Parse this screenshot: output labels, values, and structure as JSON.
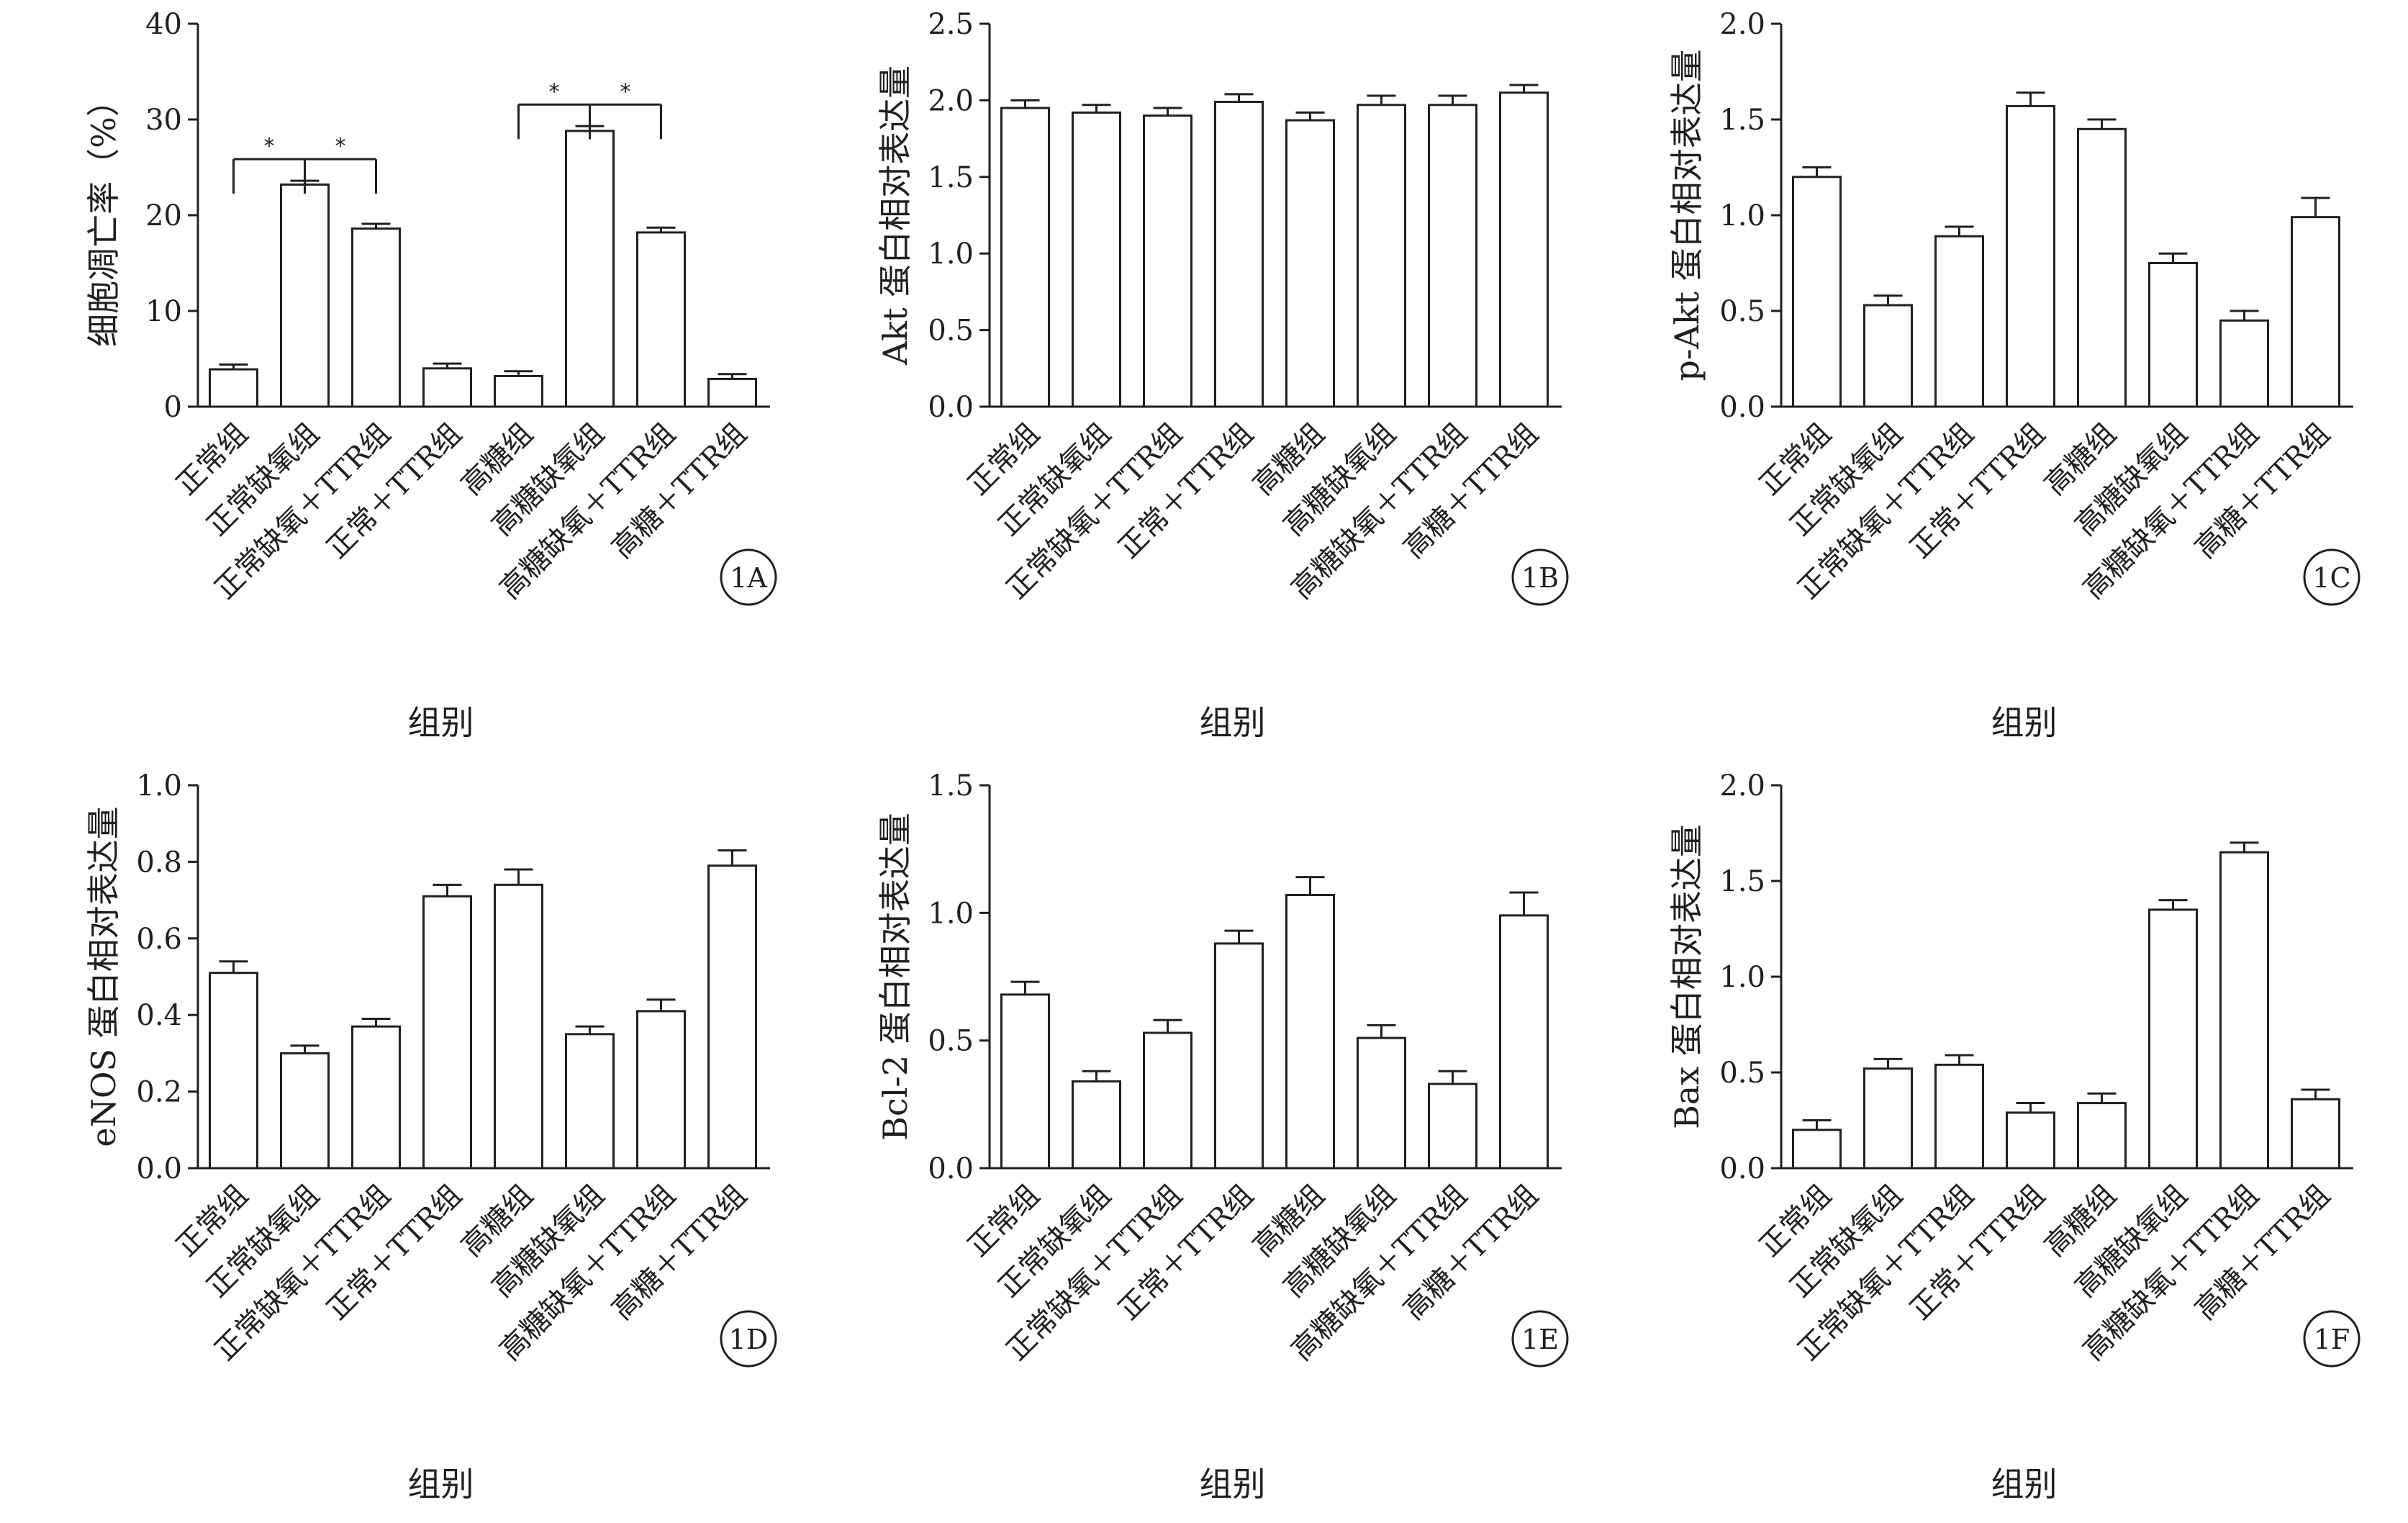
{
  "chart_data": [
    {
      "type": "bar",
      "panel_label": "1A",
      "ylabel": "细胞凋亡率（%）",
      "xlabel": "组别",
      "ylim": [
        0,
        40
      ],
      "yticks": [
        "0",
        "10",
        "20",
        "30",
        "40"
      ],
      "categories": [
        "正常组",
        "正常缺氧组",
        "正常缺氧＋TTR组",
        "正常＋TTR组",
        "高糖组",
        "高糖缺氧组",
        "高糖缺氧＋TTR组",
        "高糖＋TTR组"
      ],
      "values": [
        3.9,
        23.2,
        18.6,
        4.0,
        3.2,
        28.8,
        18.2,
        2.9
      ],
      "errors": [
        0.5,
        0.4,
        0.5,
        0.5,
        0.5,
        0.5,
        0.5,
        0.5
      ],
      "significance": [
        {
          "from": 0,
          "to": 1,
          "label": "*"
        },
        {
          "from": 1,
          "to": 2,
          "label": "*"
        },
        {
          "from": 4,
          "to": 5,
          "label": "*"
        },
        {
          "from": 5,
          "to": 6,
          "label": "*"
        }
      ]
    },
    {
      "type": "bar",
      "panel_label": "1B",
      "ylabel": "Akt 蛋白相对表达量",
      "xlabel": "组别",
      "ylim": [
        0,
        2.5
      ],
      "yticks": [
        "0.0",
        "0.5",
        "1.0",
        "1.5",
        "2.0",
        "2.5"
      ],
      "categories": [
        "正常组",
        "正常缺氧组",
        "正常缺氧＋TTR组",
        "正常＋TTR组",
        "高糖组",
        "高糖缺氧组",
        "高糖缺氧＋TTR组",
        "高糖＋TTR组"
      ],
      "values": [
        1.95,
        1.92,
        1.9,
        1.99,
        1.87,
        1.97,
        1.97,
        2.05
      ],
      "errors": [
        0.05,
        0.05,
        0.05,
        0.05,
        0.05,
        0.06,
        0.06,
        0.05
      ],
      "significance": []
    },
    {
      "type": "bar",
      "panel_label": "1C",
      "ylabel": "p-Akt 蛋白相对表达量",
      "xlabel": "组别",
      "ylim": [
        0,
        2.0
      ],
      "yticks": [
        "0.0",
        "0.5",
        "1.0",
        "1.5",
        "2.0"
      ],
      "categories": [
        "正常组",
        "正常缺氧组",
        "正常缺氧＋TTR组",
        "正常＋TTR组",
        "高糖组",
        "高糖缺氧组",
        "高糖缺氧＋TTR组",
        "高糖＋TTR组"
      ],
      "values": [
        1.2,
        0.53,
        0.89,
        1.57,
        1.45,
        0.75,
        0.45,
        0.99
      ],
      "errors": [
        0.05,
        0.05,
        0.05,
        0.07,
        0.05,
        0.05,
        0.05,
        0.1
      ],
      "significance": []
    },
    {
      "type": "bar",
      "panel_label": "1D",
      "ylabel": "eNOS 蛋白相对表达量",
      "xlabel": "组别",
      "ylim": [
        0,
        1.0
      ],
      "yticks": [
        "0.0",
        "0.2",
        "0.4",
        "0.6",
        "0.8",
        "1.0"
      ],
      "categories": [
        "正常组",
        "正常缺氧组",
        "正常缺氧＋TTR组",
        "正常＋TTR组",
        "高糖组",
        "高糖缺氧组",
        "高糖缺氧＋TTR组",
        "高糖＋TTR组"
      ],
      "values": [
        0.51,
        0.3,
        0.37,
        0.71,
        0.74,
        0.35,
        0.41,
        0.79
      ],
      "errors": [
        0.03,
        0.02,
        0.02,
        0.03,
        0.04,
        0.02,
        0.03,
        0.04
      ],
      "significance": []
    },
    {
      "type": "bar",
      "panel_label": "1E",
      "ylabel": "Bcl-2 蛋白相对表达量",
      "xlabel": "组别",
      "ylim": [
        0,
        1.5
      ],
      "yticks": [
        "0.0",
        "0.5",
        "1.0",
        "1.5"
      ],
      "categories": [
        "正常组",
        "正常缺氧组",
        "正常缺氧＋TTR组",
        "正常＋TTR组",
        "高糖组",
        "高糖缺氧组",
        "高糖缺氧＋TTR组",
        "高糖＋TTR组"
      ],
      "values": [
        0.68,
        0.34,
        0.53,
        0.88,
        1.07,
        0.51,
        0.33,
        0.99
      ],
      "errors": [
        0.05,
        0.04,
        0.05,
        0.05,
        0.07,
        0.05,
        0.05,
        0.09
      ],
      "significance": []
    },
    {
      "type": "bar",
      "panel_label": "1F",
      "ylabel": "Bax 蛋白相对表达量",
      "xlabel": "组别",
      "ylim": [
        0,
        2.0
      ],
      "yticks": [
        "0.0",
        "0.5",
        "1.0",
        "1.5",
        "2.0"
      ],
      "categories": [
        "正常组",
        "正常缺氧组",
        "正常缺氧＋TTR组",
        "正常＋TTR组",
        "高糖组",
        "高糖缺氧组",
        "高糖缺氧＋TTR组",
        "高糖＋TTR组"
      ],
      "values": [
        0.2,
        0.52,
        0.54,
        0.29,
        0.34,
        1.35,
        1.65,
        0.36
      ],
      "errors": [
        0.05,
        0.05,
        0.05,
        0.05,
        0.05,
        0.05,
        0.05,
        0.05
      ],
      "significance": []
    }
  ]
}
